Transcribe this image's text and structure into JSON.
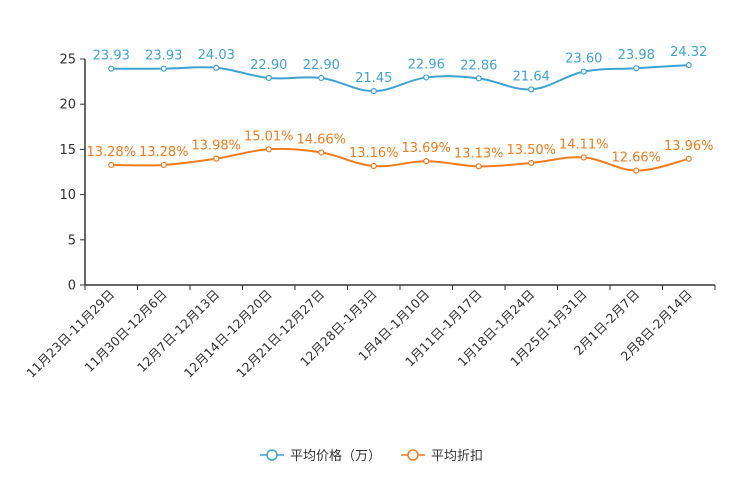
{
  "chart_data": {
    "type": "line",
    "categories": [
      "11月23日-11月29日",
      "11月30日-12月6日",
      "12月7日-12月13日",
      "12月14日-12月20日",
      "12月21日-12月27日",
      "12月28日-1月3日",
      "1月4日-1月10日",
      "1月11日-1月17日",
      "1月18日-1月24日",
      "1月25日-1月31日",
      "2月1日-2月7日",
      "2月8日-2月14日"
    ],
    "series": [
      {
        "name": "平均价格（万）",
        "color": "#3fa3d1",
        "values": [
          23.93,
          23.93,
          24.03,
          22.9,
          22.9,
          21.45,
          22.96,
          22.86,
          21.64,
          23.6,
          23.98,
          24.32
        ],
        "labels": [
          "23.93",
          "23.93",
          "24.03",
          "22.90",
          "22.90",
          "21.45",
          "22.96",
          "22.86",
          "21.64",
          "23.60",
          "23.98",
          "24.32"
        ]
      },
      {
        "name": "平均折扣",
        "color": "#f07c1e",
        "values": [
          13.28,
          13.28,
          13.98,
          15.01,
          14.66,
          13.16,
          13.69,
          13.13,
          13.5,
          14.11,
          12.66,
          13.96
        ],
        "labels": [
          "13.28%",
          "13.28%",
          "13.98%",
          "15.01%",
          "14.66%",
          "13.16%",
          "13.69%",
          "13.13%",
          "13.50%",
          "14.11%",
          "12.66%",
          "13.96%"
        ]
      }
    ],
    "yticks": [
      "0",
      "5",
      "10",
      "15",
      "20",
      "25"
    ],
    "ylim": [
      0,
      25
    ],
    "title": "",
    "xlabel": "",
    "ylabel": "",
    "grid": false,
    "legend_position": "bottom-center"
  }
}
